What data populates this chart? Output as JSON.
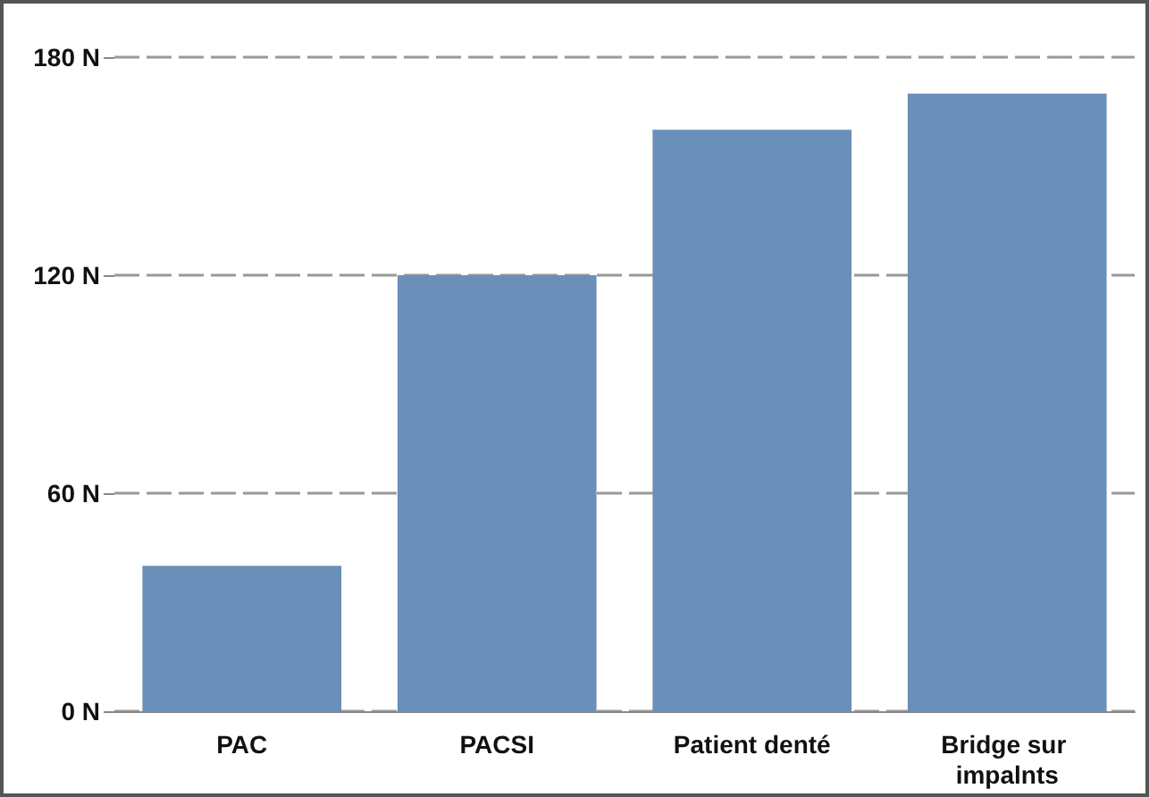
{
  "chart_data": {
    "type": "bar",
    "categories": [
      "PAC",
      "PACSI",
      "Patient denté",
      "Bridge sur impalnts"
    ],
    "values": [
      40,
      120,
      160,
      170
    ],
    "color": "#6a8fb8",
    "ylim": [
      0,
      180
    ],
    "yticks": [
      {
        "value": 0,
        "label": "0 N"
      },
      {
        "value": 60,
        "label": "60 N"
      },
      {
        "value": 120,
        "label": "120 N"
      },
      {
        "value": 180,
        "label": "180 N"
      }
    ],
    "grid": "y"
  }
}
